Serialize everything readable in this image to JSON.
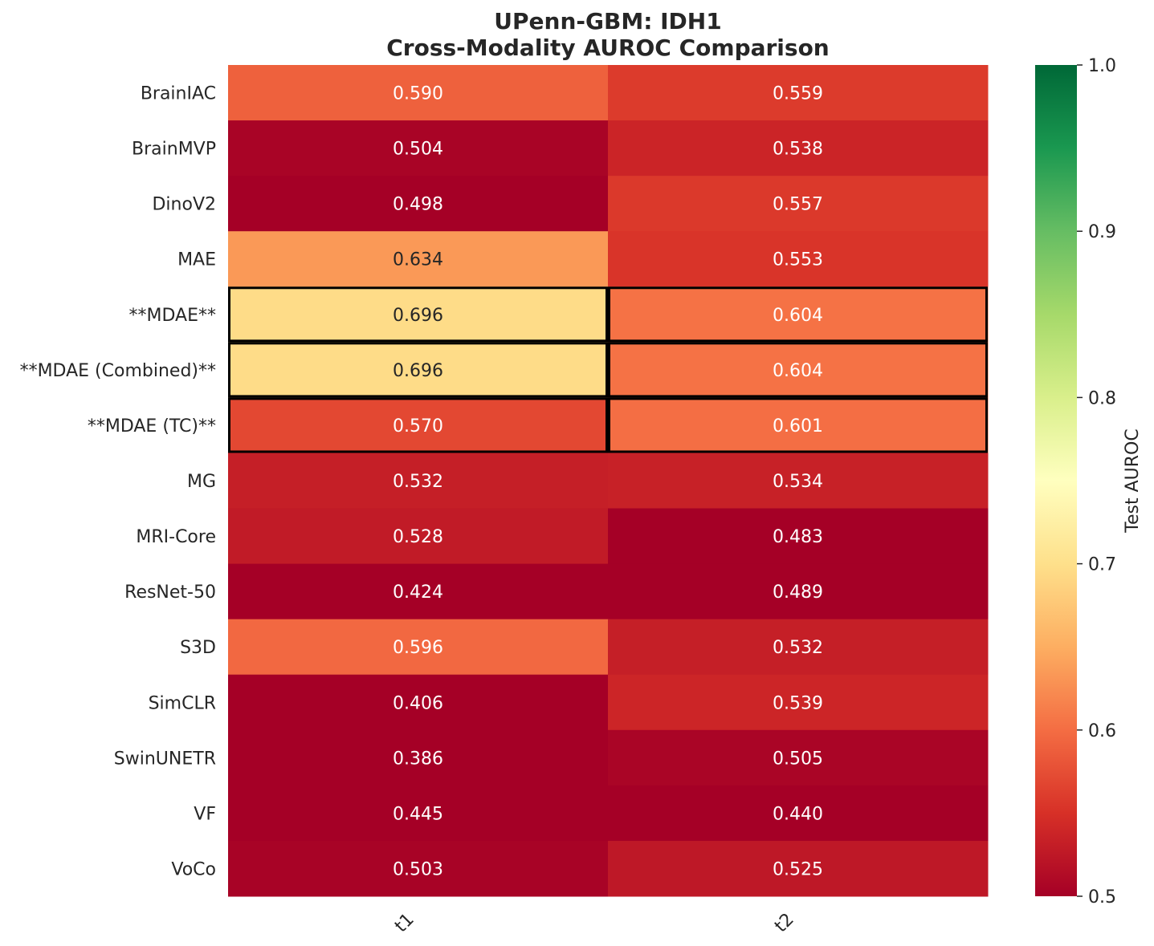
{
  "chart_data": {
    "type": "heatmap",
    "title_line1": "UPenn-GBM: IDH1",
    "title_line2": "Cross-Modality AUROC Comparison",
    "columns": [
      "t1",
      "t2"
    ],
    "rows": [
      "BrainIAC",
      "BrainMVP",
      "DinoV2",
      "MAE",
      "**MDAE**",
      "**MDAE (Combined)**",
      "**MDAE (TC)**",
      "MG",
      "MRI-Core",
      "ResNet-50",
      "S3D",
      "SimCLR",
      "SwinUNETR",
      "VF",
      "VoCo"
    ],
    "values": [
      [
        0.59,
        0.559
      ],
      [
        0.504,
        0.538
      ],
      [
        0.498,
        0.557
      ],
      [
        0.634,
        0.553
      ],
      [
        0.696,
        0.604
      ],
      [
        0.696,
        0.604
      ],
      [
        0.57,
        0.601
      ],
      [
        0.532,
        0.534
      ],
      [
        0.528,
        0.483
      ],
      [
        0.424,
        0.489
      ],
      [
        0.596,
        0.532
      ],
      [
        0.406,
        0.539
      ],
      [
        0.386,
        0.505
      ],
      [
        0.445,
        0.44
      ],
      [
        0.503,
        0.525
      ]
    ],
    "value_labels": [
      [
        "0.590",
        "0.559"
      ],
      [
        "0.504",
        "0.538"
      ],
      [
        "0.498",
        "0.557"
      ],
      [
        "0.634",
        "0.553"
      ],
      [
        "0.696",
        "0.604"
      ],
      [
        "0.696",
        "0.604"
      ],
      [
        "0.570",
        "0.601"
      ],
      [
        "0.532",
        "0.534"
      ],
      [
        "0.528",
        "0.483"
      ],
      [
        "0.424",
        "0.489"
      ],
      [
        "0.596",
        "0.532"
      ],
      [
        "0.406",
        "0.539"
      ],
      [
        "0.386",
        "0.505"
      ],
      [
        "0.445",
        "0.440"
      ],
      [
        "0.503",
        "0.525"
      ]
    ],
    "highlighted_rows": [
      "**MDAE**",
      "**MDAE (Combined)**",
      "**MDAE (TC)**"
    ],
    "colormap": "RdYlGn",
    "vmin": 0.5,
    "vmax": 1.0,
    "colorbar_label": "Test AUROC",
    "colorbar_ticks": [
      "0.5",
      "0.6",
      "0.7",
      "0.8",
      "0.9",
      "1.0"
    ],
    "colorbar_tick_values": [
      0.5,
      0.6,
      0.7,
      0.8,
      0.9,
      1.0
    ],
    "colors": {
      "highlight_border": "#000000",
      "text_dark": "#262626",
      "text_light": "#ffffff"
    }
  }
}
